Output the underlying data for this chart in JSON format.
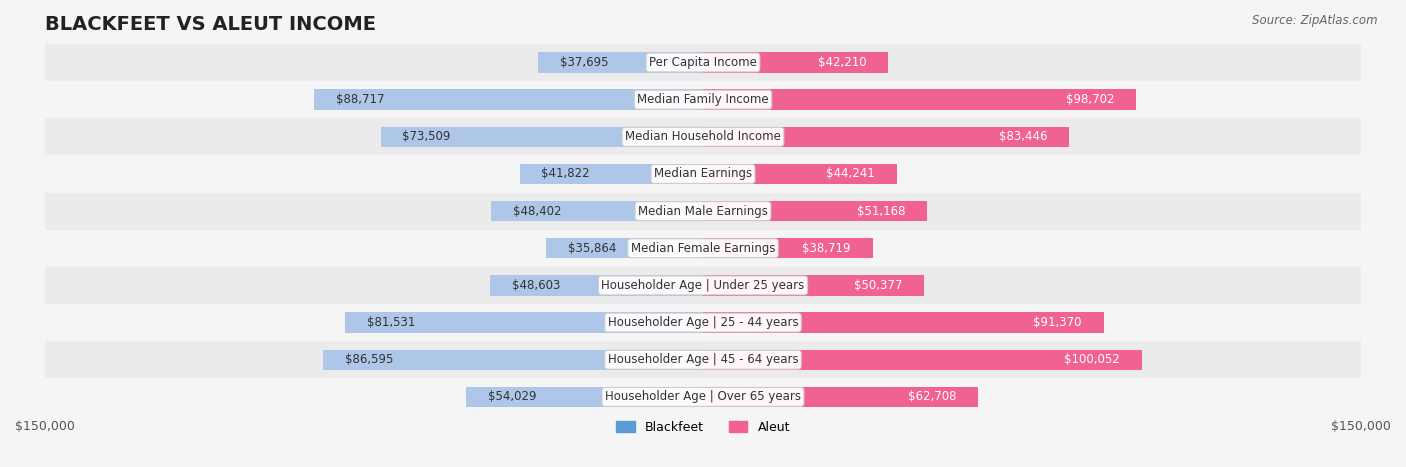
{
  "title": "BLACKFEET VS ALEUT INCOME",
  "source": "Source: ZipAtlas.com",
  "categories": [
    "Per Capita Income",
    "Median Family Income",
    "Median Household Income",
    "Median Earnings",
    "Median Male Earnings",
    "Median Female Earnings",
    "Householder Age | Under 25 years",
    "Householder Age | 25 - 44 years",
    "Householder Age | 45 - 64 years",
    "Householder Age | Over 65 years"
  ],
  "blackfeet_values": [
    37695,
    88717,
    73509,
    41822,
    48402,
    35864,
    48603,
    81531,
    86595,
    54029
  ],
  "aleut_values": [
    42210,
    98702,
    83446,
    44241,
    51168,
    38719,
    50377,
    91370,
    100052,
    62708
  ],
  "blackfeet_labels": [
    "$37,695",
    "$88,717",
    "$73,509",
    "$41,822",
    "$48,402",
    "$35,864",
    "$48,603",
    "$81,531",
    "$86,595",
    "$54,029"
  ],
  "aleut_labels": [
    "$42,210",
    "$98,702",
    "$83,446",
    "$44,241",
    "$51,168",
    "$38,719",
    "$50,377",
    "$91,370",
    "$100,052",
    "$62,708"
  ],
  "blackfeet_color_strong": "#5b9bd5",
  "blackfeet_color_light": "#aec6e8",
  "aleut_color_strong": "#f06292",
  "aleut_color_light": "#f4a7c0",
  "max_val": 150000,
  "bar_height": 0.55,
  "background_color": "#f5f5f5",
  "row_bg_odd": "#ebebeb",
  "row_bg_even": "#f5f5f5",
  "title_fontsize": 14,
  "label_fontsize": 8.5,
  "tick_fontsize": 9
}
